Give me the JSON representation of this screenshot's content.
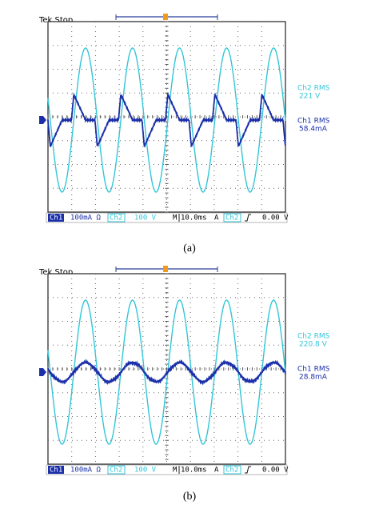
{
  "panels": [
    {
      "header": "Tek Stop",
      "status_bar": {
        "ch1": "Ch1",
        "ch1_scale": "100mA Ω",
        "ch2": "Ch2",
        "ch2_scale": "100 V",
        "timebase_mode": "M",
        "timebase": "10.0ms",
        "trigger_mode": "A",
        "trigger_source": "Ch2",
        "trigger_level": "0.00 V"
      },
      "readouts": [
        {
          "label": "Ch2 RMS",
          "value": "221 V"
        },
        {
          "label": "Ch1 RMS",
          "value": "58.4mA"
        }
      ],
      "caption": "(a)"
    },
    {
      "header": "Tek Stop",
      "status_bar": {
        "ch1": "Ch1",
        "ch1_scale": "100mA Ω",
        "ch2": "Ch2",
        "ch2_scale": "100 V",
        "timebase_mode": "M",
        "timebase": "10.0ms",
        "trigger_mode": "A",
        "trigger_source": "Ch2",
        "trigger_level": "0.00 V"
      },
      "readouts": [
        {
          "label": "Ch2 RMS",
          "value": "220.8 V"
        },
        {
          "label": "Ch1 RMS",
          "value": "28.8mA"
        }
      ],
      "caption": "(b)"
    }
  ]
}
